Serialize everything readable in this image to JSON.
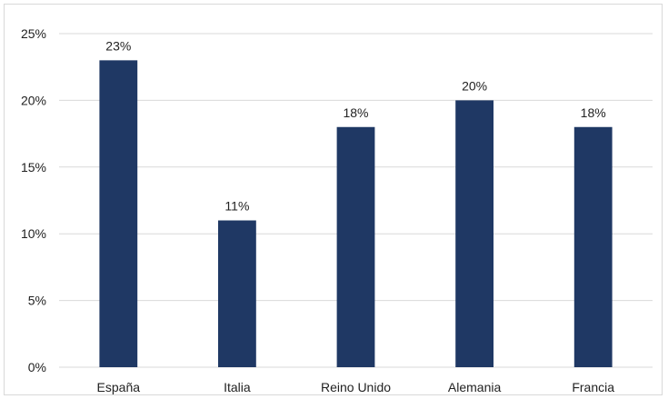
{
  "chart_data": {
    "type": "bar",
    "categories": [
      "España",
      "Italia",
      "Reino Unido",
      "Alemania",
      "Francia"
    ],
    "values": [
      23,
      11,
      18,
      20,
      18
    ],
    "value_labels": [
      "23%",
      "11%",
      "18%",
      "20%",
      "18%"
    ],
    "yticks": [
      {
        "value": 0,
        "label": "0%"
      },
      {
        "value": 5,
        "label": "5%"
      },
      {
        "value": 10,
        "label": "10%"
      },
      {
        "value": 15,
        "label": "15%"
      },
      {
        "value": 20,
        "label": "20%"
      },
      {
        "value": 25,
        "label": "25%"
      }
    ],
    "ylim": [
      0,
      25
    ],
    "grid": true,
    "legend": "none",
    "title": "",
    "xlabel": "",
    "ylabel": "",
    "bar_color": "#1f3864",
    "grid_color": "#d9d9d9",
    "text_color": "#222222"
  }
}
